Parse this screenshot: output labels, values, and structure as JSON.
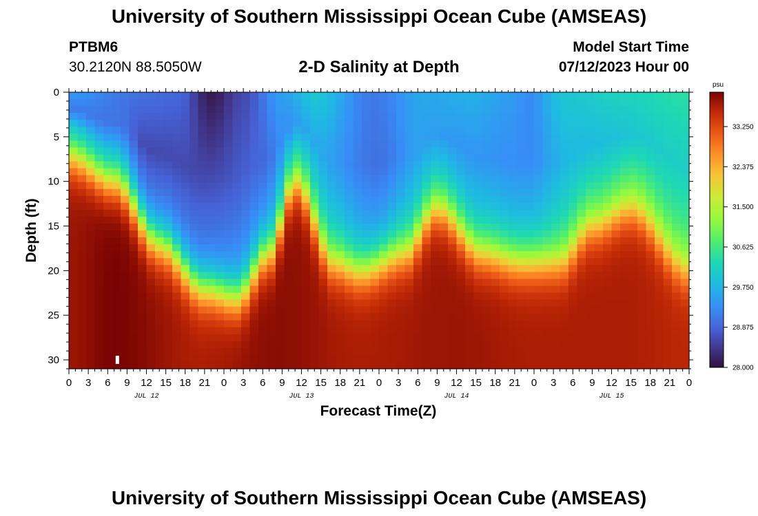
{
  "header": {
    "title": "University of Southern Mississippi Ocean Cube (AMSEAS)",
    "station": "PTBM6",
    "coordinates": "30.2120N  88.5050W",
    "subtitle": "2-D Salinity at Depth",
    "model_start_label": "Model Start Time",
    "model_start_value": "07/12/2023 Hour 00"
  },
  "footer": {
    "title": "University of Southern Mississippi Ocean Cube (AMSEAS)"
  },
  "chart_data": {
    "type": "heatmap",
    "title": "2-D Salinity at Depth",
    "xlabel": "Forecast Time(Z)",
    "ylabel": "Depth (ft)",
    "x_range_hours": [
      0,
      96
    ],
    "y_range_ft": [
      0,
      31
    ],
    "x_tick_labels": [
      "0",
      "3",
      "6",
      "9",
      "12",
      "15",
      "18",
      "21",
      "0",
      "3",
      "6",
      "9",
      "12",
      "15",
      "18",
      "21",
      "0",
      "3",
      "6",
      "9",
      "12",
      "15",
      "18",
      "21",
      "0",
      "3",
      "6",
      "9",
      "12",
      "15",
      "18",
      "21",
      "0"
    ],
    "date_labels": [
      {
        "label": "JUL 12",
        "hour": 12
      },
      {
        "label": "JUL 13",
        "hour": 36
      },
      {
        "label": "JUL 14",
        "hour": 60
      },
      {
        "label": "JUL 15",
        "hour": 84
      }
    ],
    "y_ticks": [
      0,
      5,
      10,
      15,
      20,
      25,
      30
    ],
    "colorbar": {
      "unit": "psu",
      "range": [
        28.0,
        34.0
      ],
      "tick_labels": [
        "28.000",
        "28.875",
        "29.750",
        "30.625",
        "31.500",
        "32.375",
        "33.250"
      ],
      "tick_values": [
        28.0,
        28.875,
        29.75,
        30.625,
        31.5,
        32.375,
        33.25
      ]
    },
    "halocline_depth_ft": [
      {
        "hour": 0,
        "depth": 7
      },
      {
        "hour": 7,
        "depth": 10
      },
      {
        "hour": 14,
        "depth": 17
      },
      {
        "hour": 21,
        "depth": 22
      },
      {
        "hour": 26,
        "depth": 23
      },
      {
        "hour": 31,
        "depth": 18
      },
      {
        "hour": 35,
        "depth": 10
      },
      {
        "hour": 41,
        "depth": 19
      },
      {
        "hour": 45,
        "depth": 20
      },
      {
        "hour": 52,
        "depth": 18
      },
      {
        "hour": 57,
        "depth": 13
      },
      {
        "hour": 64,
        "depth": 18
      },
      {
        "hour": 70,
        "depth": 19
      },
      {
        "hour": 76,
        "depth": 19
      },
      {
        "hour": 81,
        "depth": 15
      },
      {
        "hour": 87,
        "depth": 13
      },
      {
        "hour": 96,
        "depth": 20
      }
    ],
    "surface_salinity_psu": [
      {
        "hour": 0,
        "value": 29.4
      },
      {
        "hour": 11,
        "value": 29.0
      },
      {
        "hour": 17,
        "value": 28.9
      },
      {
        "hour": 22,
        "value": 28.1
      },
      {
        "hour": 27,
        "value": 28.6
      },
      {
        "hour": 33,
        "value": 29.5
      },
      {
        "hour": 38,
        "value": 30.0
      },
      {
        "hour": 47,
        "value": 29.1
      },
      {
        "hour": 55,
        "value": 29.6
      },
      {
        "hour": 62,
        "value": 29.7
      },
      {
        "hour": 68,
        "value": 29.5
      },
      {
        "hour": 71,
        "value": 29.3
      },
      {
        "hour": 77,
        "value": 30.0
      },
      {
        "hour": 86,
        "value": 30.2
      },
      {
        "hour": 96,
        "value": 30.4
      }
    ],
    "bottom_salinity_psu": [
      {
        "hour": 0,
        "value": 33.8
      },
      {
        "hour": 7,
        "value": 34.0
      },
      {
        "hour": 20,
        "value": 33.7
      },
      {
        "hour": 32,
        "value": 33.9
      },
      {
        "hour": 45,
        "value": 33.7
      },
      {
        "hour": 60,
        "value": 33.8
      },
      {
        "hour": 72,
        "value": 33.7
      },
      {
        "hour": 85,
        "value": 33.7
      },
      {
        "hour": 96,
        "value": 33.6
      }
    ],
    "mid_depth_salinity_psu": [
      {
        "hour": 0,
        "value": 29.0
      },
      {
        "hour": 8,
        "value": 29.0
      },
      {
        "hour": 12,
        "value": 28.6
      },
      {
        "hour": 21,
        "value": 28.6
      },
      {
        "hour": 30,
        "value": 28.9
      },
      {
        "hour": 33,
        "value": 29.3
      },
      {
        "hour": 38,
        "value": 29.6
      },
      {
        "hour": 48,
        "value": 29.0
      },
      {
        "hour": 54,
        "value": 29.5
      },
      {
        "hour": 62,
        "value": 29.4
      },
      {
        "hour": 71,
        "value": 29.3
      },
      {
        "hour": 78,
        "value": 29.8
      },
      {
        "hour": 96,
        "value": 30.1
      }
    ],
    "marker": {
      "hour": 7.5,
      "depth_ft": 30
    }
  }
}
